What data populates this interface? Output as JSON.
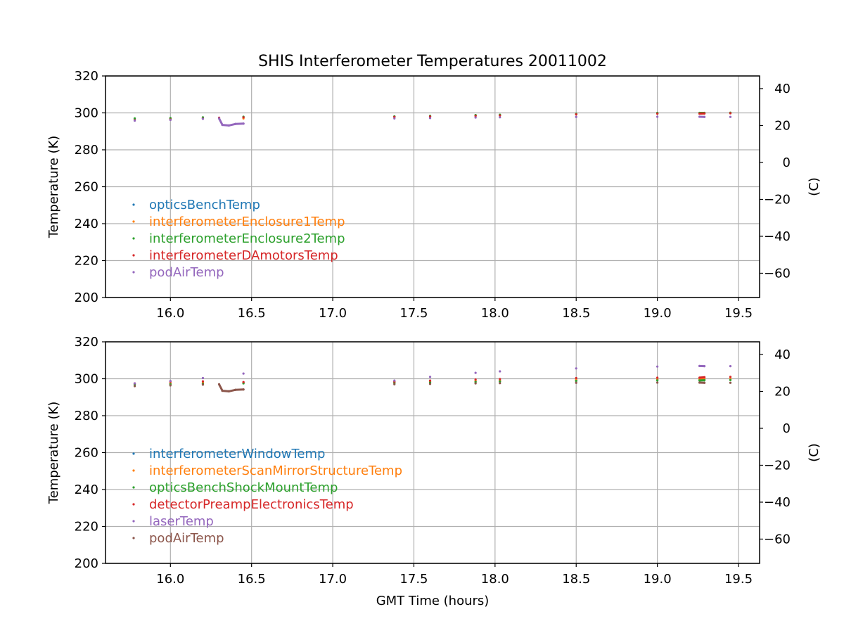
{
  "chart_data": {
    "type": "line",
    "title": "SHIS Interferometer Temperatures 20011002",
    "xlabel": "GMT Time (hours)",
    "xlim": [
      15.6,
      19.63
    ],
    "xticks": [
      16.0,
      16.5,
      17.0,
      17.5,
      18.0,
      18.5,
      19.0,
      19.5
    ],
    "xtick_labels": [
      "16.0",
      "16.5",
      "17.0",
      "17.5",
      "18.0",
      "18.5",
      "19.0",
      "19.5"
    ],
    "grid": true,
    "panels": [
      {
        "ylabel": "Temperature (K)",
        "ylim": [
          200,
          320
        ],
        "yticks": [
          200,
          220,
          240,
          260,
          280,
          300,
          320
        ],
        "ytick_labels": [
          "200",
          "220",
          "240",
          "260",
          "280",
          "300",
          "320"
        ],
        "y2label": "(C)",
        "y2lim": [
          -73.15,
          46.85
        ],
        "y2ticks": [
          40,
          20,
          0,
          -20,
          -40,
          -60
        ],
        "y2tick_labels": [
          "40",
          "20",
          "0",
          "−20",
          "−40",
          "−60"
        ],
        "legend_location": "lower-left",
        "series": [
          {
            "name": "opticsBenchTemp",
            "color": "#1f77b4",
            "x": [
              15.78,
              16.0,
              16.2,
              16.45,
              17.38,
              17.6,
              17.88,
              18.03,
              18.5,
              19.0,
              19.26,
              19.29,
              19.45
            ],
            "y": [
              296.5,
              296.8,
              297.2,
              297.6,
              297.9,
              298.2,
              298.6,
              298.8,
              299.3,
              299.7,
              299.7,
              299.8,
              299.9
            ]
          },
          {
            "name": "interferometerEnclosure1Temp",
            "color": "#ff7f0e",
            "x": [
              15.78,
              16.0,
              16.2,
              16.45,
              17.38,
              17.6,
              17.88,
              18.03,
              18.5,
              19.0,
              19.26,
              19.29,
              19.45
            ],
            "y": [
              296.8,
              297.0,
              297.4,
              297.0,
              297.8,
              298.0,
              298.5,
              298.7,
              299.2,
              299.6,
              299.6,
              299.7,
              299.8
            ]
          },
          {
            "name": "interferometerEnclosure2Temp",
            "color": "#2ca02c",
            "x": [
              15.78,
              16.0,
              16.2,
              16.45,
              17.38,
              17.6,
              17.88,
              18.03,
              18.5,
              19.0,
              19.26,
              19.29,
              19.45
            ],
            "y": [
              297.0,
              297.2,
              297.6,
              297.9,
              298.1,
              298.4,
              298.8,
              299.0,
              299.5,
              300.0,
              300.0,
              300.0,
              300.1
            ]
          },
          {
            "name": "interferometerDAmotorsTemp",
            "color": "#d62728",
            "x": [
              15.78,
              16.0,
              16.2,
              16.3,
              16.45,
              17.38,
              17.6,
              17.88,
              18.03,
              18.5,
              19.0,
              19.26,
              19.29,
              19.45
            ],
            "y": [
              296.0,
              296.4,
              296.9,
              297.4,
              297.6,
              297.8,
              298.0,
              298.4,
              298.6,
              299.2,
              299.6,
              299.6,
              299.7,
              299.8
            ]
          },
          {
            "name": "podAirTemp",
            "color": "#9467bd",
            "x": [
              15.78,
              16.0,
              16.2,
              16.3,
              16.32,
              16.36,
              16.4,
              16.45,
              17.38,
              17.6,
              17.88,
              18.03,
              18.5,
              19.0,
              19.26,
              19.29,
              19.45
            ],
            "y": [
              295.8,
              296.2,
              296.8,
              297.0,
              293.5,
              293.2,
              294.0,
              294.2,
              297.0,
              297.2,
              297.5,
              297.6,
              297.8,
              297.9,
              297.9,
              297.8,
              297.8
            ]
          }
        ]
      },
      {
        "ylabel": "Temperature (K)",
        "ylim": [
          200,
          320
        ],
        "yticks": [
          200,
          220,
          240,
          260,
          280,
          300,
          320
        ],
        "ytick_labels": [
          "200",
          "220",
          "240",
          "260",
          "280",
          "300",
          "320"
        ],
        "y2label": "(C)",
        "y2lim": [
          -73.15,
          46.85
        ],
        "y2ticks": [
          40,
          20,
          0,
          -20,
          -40,
          -60
        ],
        "y2tick_labels": [
          "40",
          "20",
          "0",
          "−20",
          "−40",
          "−60"
        ],
        "legend_location": "lower-left",
        "series": [
          {
            "name": "interferometerWindowTemp",
            "color": "#1f77b4",
            "x": [
              15.78,
              16.0,
              16.2,
              16.45,
              17.38,
              17.6,
              17.88,
              18.03,
              18.5,
              19.0,
              19.26,
              19.29,
              19.45
            ],
            "y": [
              297.0,
              297.2,
              297.5,
              297.8,
              298.0,
              298.3,
              298.6,
              298.8,
              299.2,
              299.5,
              299.5,
              299.6,
              299.7
            ]
          },
          {
            "name": "interferometerScanMirrorStructureTemp",
            "color": "#ff7f0e",
            "x": [
              15.78,
              16.0,
              16.2,
              16.45,
              17.38,
              17.6,
              17.88,
              18.03,
              18.5,
              19.0,
              19.26,
              19.29,
              19.45
            ],
            "y": [
              297.3,
              297.5,
              297.8,
              298.0,
              298.2,
              298.5,
              298.8,
              299.0,
              299.4,
              299.7,
              299.7,
              299.8,
              299.9
            ]
          },
          {
            "name": "opticsBenchShockMountTemp",
            "color": "#2ca02c",
            "x": [
              15.78,
              16.0,
              16.2,
              16.45,
              17.38,
              17.6,
              17.88,
              18.03,
              18.5,
              19.0,
              19.26,
              19.29,
              19.45
            ],
            "y": [
              296.8,
              297.0,
              297.2,
              297.5,
              297.6,
              297.9,
              298.2,
              298.5,
              298.8,
              299.1,
              299.1,
              299.2,
              299.3
            ]
          },
          {
            "name": "detectorPreampElectronicsTemp",
            "color": "#d62728",
            "x": [
              15.78,
              16.0,
              16.2,
              16.45,
              17.38,
              17.6,
              17.88,
              18.03,
              18.5,
              19.0,
              19.26,
              19.29,
              19.45
            ],
            "y": [
              297.5,
              298.4,
              298.6,
              298.2,
              298.5,
              299.0,
              299.6,
              299.8,
              300.4,
              300.6,
              300.6,
              300.8,
              301.0
            ]
          },
          {
            "name": "laserTemp",
            "color": "#9467bd",
            "x": [
              15.78,
              16.0,
              16.2,
              16.45,
              17.38,
              17.6,
              17.88,
              18.03,
              18.5,
              19.0,
              19.26,
              19.29,
              19.45
            ],
            "y": [
              297.5,
              298.8,
              300.4,
              302.8,
              299.0,
              301.0,
              303.2,
              304.0,
              305.6,
              306.6,
              306.9,
              306.8,
              306.8
            ]
          },
          {
            "name": "podAirTemp",
            "color": "#8c564b",
            "x": [
              15.78,
              16.0,
              16.2,
              16.3,
              16.32,
              16.36,
              16.4,
              16.45,
              17.38,
              17.6,
              17.88,
              18.03,
              18.5,
              19.0,
              19.26,
              19.29,
              19.45
            ],
            "y": [
              296.0,
              296.4,
              296.8,
              297.0,
              293.5,
              293.2,
              294.0,
              294.2,
              297.0,
              297.2,
              297.5,
              297.6,
              297.8,
              297.9,
              297.9,
              297.8,
              297.8
            ]
          }
        ]
      }
    ]
  }
}
